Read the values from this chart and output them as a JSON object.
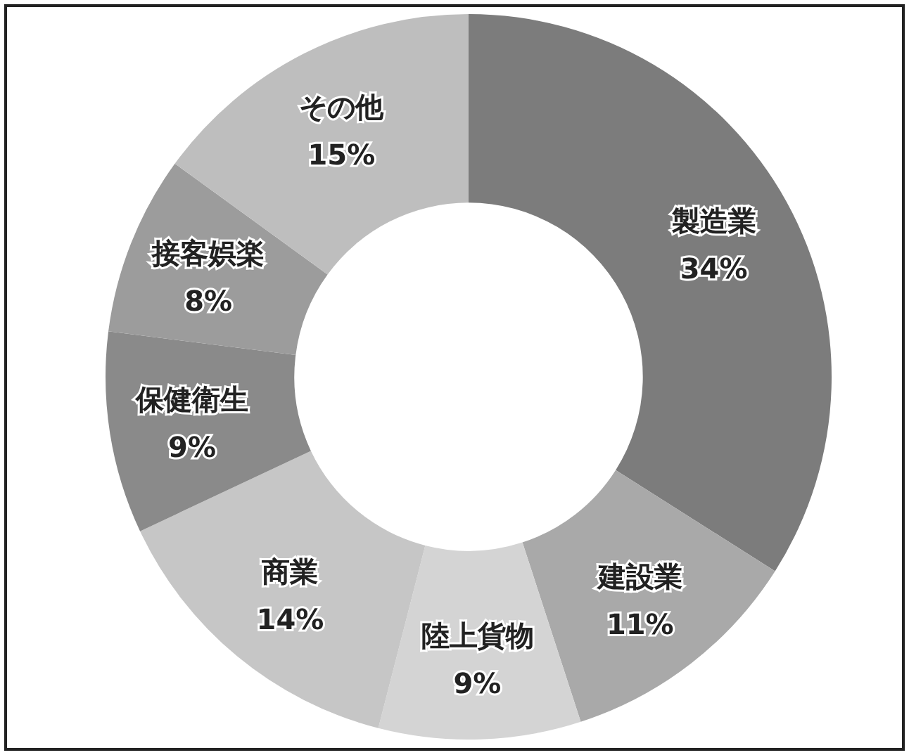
{
  "chart_data": {
    "type": "donut",
    "categories": [
      "製造業",
      "建設業",
      "陸上貨物",
      "商業",
      "保健衛生",
      "接客娯楽",
      "その他"
    ],
    "values": [
      34,
      11,
      9,
      14,
      9,
      8,
      15
    ],
    "colors": [
      "#7c7c7c",
      "#a9a9a9",
      "#d4d4d4",
      "#c6c6c6",
      "#8a8a8a",
      "#9c9c9c",
      "#bebebe"
    ],
    "value_labels": [
      "34%",
      "11%",
      "9%",
      "14%",
      "9%",
      "8%",
      "15%"
    ]
  }
}
